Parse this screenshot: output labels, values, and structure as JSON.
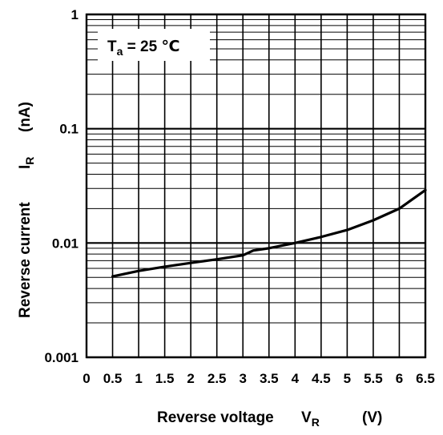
{
  "chart_data": {
    "type": "line",
    "title": "",
    "xlabel": {
      "text": "Reverse voltage",
      "symbol": "V",
      "subscript": "R",
      "unit": "(V)"
    },
    "ylabel": {
      "text": "Reverse current",
      "symbol": "I",
      "subscript": "R",
      "unit": "(nA)"
    },
    "xlim": [
      0,
      6.5
    ],
    "ylim": [
      0.001,
      1
    ],
    "yscale": "log",
    "grid": true,
    "x_ticks": [
      {
        "value": 0,
        "label": "0"
      },
      {
        "value": 0.5,
        "label": "0.5"
      },
      {
        "value": 1,
        "label": "1"
      },
      {
        "value": 1.5,
        "label": "1.5"
      },
      {
        "value": 2,
        "label": "2"
      },
      {
        "value": 2.5,
        "label": "2.5"
      },
      {
        "value": 3,
        "label": "3"
      },
      {
        "value": 3.5,
        "label": "3.5"
      },
      {
        "value": 4,
        "label": "4"
      },
      {
        "value": 4.5,
        "label": "4.5"
      },
      {
        "value": 5,
        "label": "5"
      },
      {
        "value": 5.5,
        "label": "5.5"
      },
      {
        "value": 6,
        "label": "6"
      },
      {
        "value": 6.5,
        "label": "6.5"
      }
    ],
    "y_ticks": [
      {
        "value": 0.001,
        "label": "0.001"
      },
      {
        "value": 0.01,
        "label": "0.01"
      },
      {
        "value": 0.1,
        "label": "0.1"
      },
      {
        "value": 1,
        "label": "1"
      }
    ],
    "annotation": {
      "symbol": "T",
      "subscript": "a",
      "text": " = 25 ℃"
    },
    "series": [
      {
        "x": [
          0.5,
          1.0,
          1.5,
          2.0,
          2.5,
          3.0,
          3.2,
          3.5,
          4.0,
          4.5,
          5.0,
          5.5,
          6.0,
          6.5
        ],
        "y": [
          0.0051,
          0.0057,
          0.0062,
          0.0067,
          0.0072,
          0.0078,
          0.0086,
          0.009,
          0.01,
          0.0113,
          0.013,
          0.0158,
          0.02,
          0.029
        ]
      }
    ]
  }
}
